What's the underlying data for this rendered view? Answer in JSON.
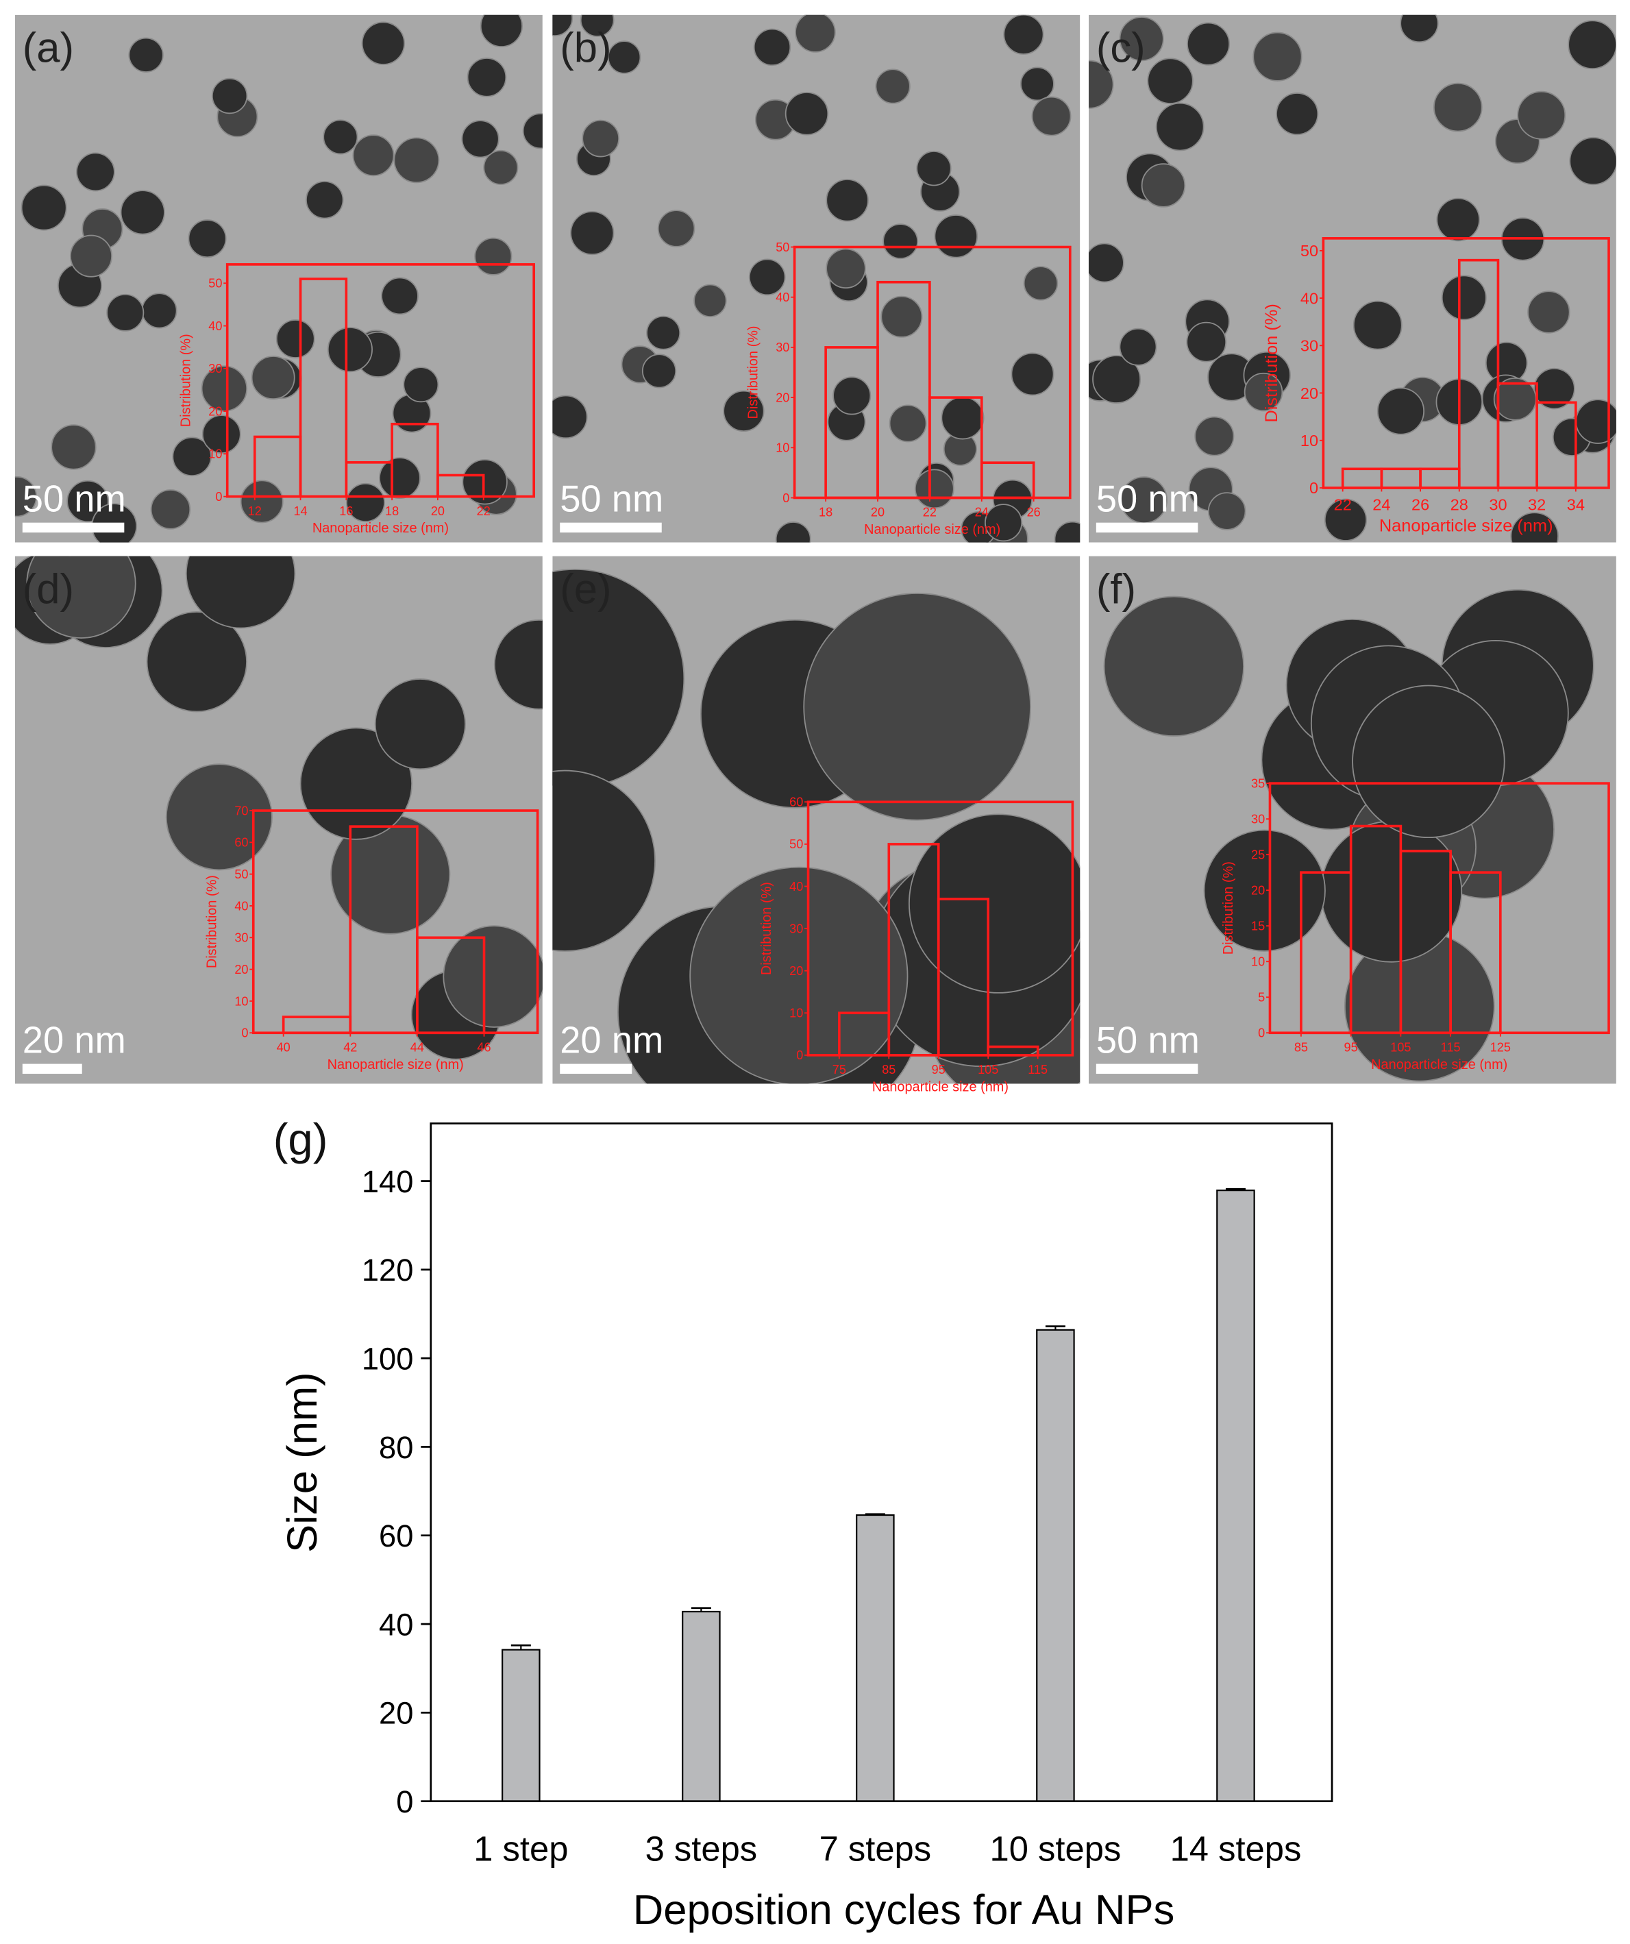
{
  "chart_data": [
    {
      "type": "histogram",
      "panel": "(a)",
      "scale_bar": "50 nm",
      "xlabel": "Nanoparticle size (nm)",
      "ylabel": "Distribution (%)",
      "bins": [
        12,
        14,
        16,
        18,
        20,
        22
      ],
      "counts": [
        14,
        51,
        8,
        17,
        5
      ],
      "xlim": [
        10.8,
        24.2
      ],
      "ylim": [
        0,
        54.4
      ],
      "xticks": [
        12,
        14,
        16,
        18,
        20,
        22
      ],
      "yticks": [
        0,
        10,
        20,
        30,
        40,
        50
      ],
      "color": "#ff1a1a"
    },
    {
      "type": "histogram",
      "panel": "(b)",
      "scale_bar": "50 nm",
      "xlabel": "Nanoparticle size (nm)",
      "ylabel": "Distribution (%)",
      "bins": [
        18,
        20,
        22,
        24,
        26
      ],
      "counts": [
        30,
        43,
        20,
        7
      ],
      "xlim": [
        16.8,
        27.4
      ],
      "ylim": [
        0,
        50
      ],
      "xticks": [
        18,
        20,
        22,
        24,
        26
      ],
      "yticks": [
        0,
        10,
        20,
        30,
        40,
        50
      ],
      "color": "#ff1a1a"
    },
    {
      "type": "histogram",
      "panel": "(c)",
      "scale_bar": "50 nm",
      "xlabel": "Nanoparticle size (nm)",
      "ylabel": "Distribution (%)",
      "bins": [
        22,
        24,
        26,
        28,
        30,
        32,
        34
      ],
      "counts": [
        4,
        4,
        4,
        48,
        22,
        18
      ],
      "xlim": [
        21,
        35.7
      ],
      "ylim": [
        0,
        52.6
      ],
      "xticks": [
        22,
        24,
        26,
        28,
        30,
        32,
        34
      ],
      "yticks": [
        0,
        10,
        20,
        30,
        40,
        50
      ],
      "color": "#ff1a1a"
    },
    {
      "type": "histogram",
      "panel": "(d)",
      "scale_bar": "20 nm",
      "xlabel": "Nanoparticle size (nm)",
      "ylabel": "Distribution (%)",
      "bins": [
        40,
        42,
        44,
        46
      ],
      "counts": [
        5,
        65,
        30
      ],
      "xlim": [
        39.1,
        47.6
      ],
      "ylim": [
        0,
        70
      ],
      "xticks": [
        40,
        42,
        44,
        46
      ],
      "yticks": [
        0,
        10,
        20,
        30,
        40,
        50,
        60,
        70
      ],
      "color": "#ff1a1a"
    },
    {
      "type": "histogram",
      "panel": "(e)",
      "scale_bar": "20 nm",
      "xlabel": "Nanoparticle size (nm)",
      "ylabel": "Distribution (%)",
      "bins": [
        75,
        85,
        95,
        105,
        115
      ],
      "counts": [
        10,
        50,
        37,
        2
      ],
      "xlim": [
        68.75,
        122
      ],
      "ylim": [
        0,
        60
      ],
      "xticks": [
        75,
        85,
        95,
        105,
        115
      ],
      "yticks": [
        0,
        10,
        20,
        30,
        40,
        50,
        60
      ],
      "color": "#ff1a1a"
    },
    {
      "type": "histogram",
      "panel": "(f)",
      "scale_bar": "50 nm",
      "xlabel": "Nanoparticle size (nm)",
      "ylabel": "Distribution (%)",
      "bins": [
        85,
        95,
        105,
        115,
        125
      ],
      "counts": [
        22.5,
        29,
        25.5,
        22.5
      ],
      "xlim": [
        78.75,
        146.75
      ],
      "ylim": [
        0,
        35
      ],
      "xticks": [
        85,
        95,
        105,
        115,
        125
      ],
      "yticks": [
        0,
        5,
        10,
        15,
        20,
        25,
        30,
        35
      ],
      "color": "#ff1a1a"
    },
    {
      "type": "bar",
      "panel": "(g)",
      "xlabel": "Deposition cycles for Au NPs",
      "ylabel": "Size (nm)",
      "categories": [
        "1 step",
        "3 steps",
        "7 steps",
        "10 steps",
        "14 steps"
      ],
      "values": [
        34.2,
        42.8,
        64.6,
        106.4,
        137.9
      ],
      "errors": [
        1,
        0.8,
        0.2,
        0.8,
        0.3
      ],
      "ylim": [
        0,
        153
      ],
      "yticks": [
        0,
        20,
        40,
        60,
        80,
        100,
        120,
        140
      ],
      "color": "#b8b9bb"
    }
  ]
}
